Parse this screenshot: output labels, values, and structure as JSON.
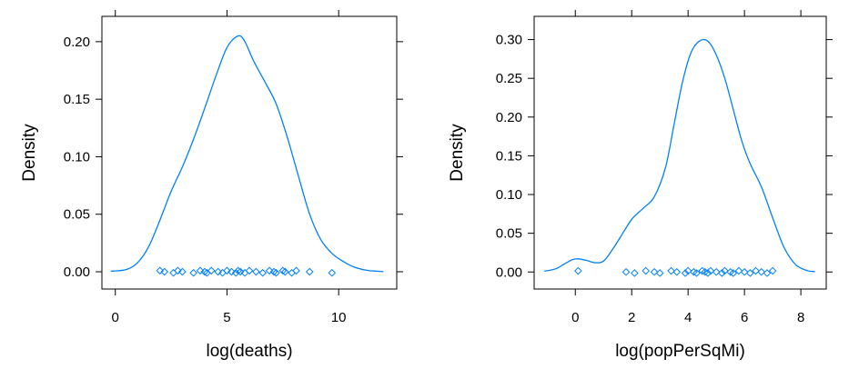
{
  "chart_data": [
    {
      "type": "density",
      "xlabel": "log(deaths)",
      "ylabel": "Density",
      "xlim": [
        -0.6,
        12.6
      ],
      "ylim": [
        -0.015,
        0.222
      ],
      "x_ticks": [
        0,
        5,
        10
      ],
      "x_tick_labels": [
        "0",
        "5",
        "10"
      ],
      "y_ticks": [
        0,
        0.05,
        0.1,
        0.15,
        0.2
      ],
      "y_tick_labels": [
        "0.00",
        "0.05",
        "0.10",
        "0.15",
        "0.20"
      ],
      "line_color": "#0080ff",
      "grid": false,
      "density_curve": {
        "x": [
          -0.2,
          0.5,
          1.0,
          1.5,
          2.0,
          2.5,
          3.0,
          3.5,
          4.0,
          4.5,
          5.0,
          5.5,
          5.8,
          6.2,
          6.7,
          7.2,
          7.7,
          8.2,
          8.7,
          9.2,
          9.7,
          10.2,
          10.7,
          11.2,
          11.7,
          12.0
        ],
        "y": [
          0.0005,
          0.002,
          0.008,
          0.022,
          0.045,
          0.07,
          0.091,
          0.115,
          0.142,
          0.17,
          0.195,
          0.205,
          0.2,
          0.183,
          0.165,
          0.146,
          0.117,
          0.083,
          0.05,
          0.028,
          0.016,
          0.009,
          0.004,
          0.0015,
          0.0005,
          0.0002
        ]
      },
      "rug_points": [
        2.0,
        2.2,
        2.6,
        2.8,
        3.0,
        3.5,
        3.8,
        4.0,
        4.1,
        4.3,
        4.6,
        4.8,
        5.0,
        5.2,
        5.4,
        5.5,
        5.6,
        5.8,
        6.0,
        6.3,
        6.6,
        6.9,
        7.1,
        7.2,
        7.5,
        7.6,
        7.9,
        8.1,
        8.7,
        9.7
      ]
    },
    {
      "type": "density",
      "xlabel": "log(popPerSqMi)",
      "ylabel": "Density",
      "xlim": [
        -1.46,
        8.9
      ],
      "ylim": [
        -0.022,
        0.33
      ],
      "x_ticks": [
        0,
        2,
        4,
        6,
        8
      ],
      "x_tick_labels": [
        "0",
        "2",
        "4",
        "6",
        "8"
      ],
      "y_ticks": [
        0,
        0.05,
        0.1,
        0.15,
        0.2,
        0.25,
        0.3
      ],
      "y_tick_labels": [
        "0.00",
        "0.05",
        "0.10",
        "0.15",
        "0.20",
        "0.25",
        "0.30"
      ],
      "line_color": "#0080ff",
      "grid": false,
      "density_curve": {
        "x": [
          -1.1,
          -0.7,
          -0.4,
          -0.1,
          0.1,
          0.4,
          0.7,
          1.0,
          1.3,
          1.6,
          2.0,
          2.4,
          2.8,
          3.2,
          3.5,
          3.8,
          4.1,
          4.4,
          4.7,
          5.0,
          5.3,
          5.6,
          5.9,
          6.2,
          6.6,
          7.0,
          7.4,
          7.8,
          8.2,
          8.5
        ],
        "y": [
          0.001,
          0.004,
          0.01,
          0.016,
          0.017,
          0.015,
          0.012,
          0.014,
          0.028,
          0.045,
          0.068,
          0.082,
          0.097,
          0.135,
          0.19,
          0.245,
          0.283,
          0.298,
          0.298,
          0.28,
          0.25,
          0.21,
          0.17,
          0.14,
          0.11,
          0.07,
          0.032,
          0.01,
          0.002,
          0.0005
        ]
      },
      "rug_points": [
        0.1,
        1.8,
        2.1,
        2.5,
        2.8,
        3.0,
        3.4,
        3.6,
        3.9,
        4.0,
        4.2,
        4.3,
        4.5,
        4.6,
        4.7,
        4.8,
        5.0,
        5.2,
        5.3,
        5.5,
        5.6,
        5.8,
        6.0,
        6.2,
        6.4,
        6.6,
        6.8,
        7.0
      ]
    }
  ]
}
